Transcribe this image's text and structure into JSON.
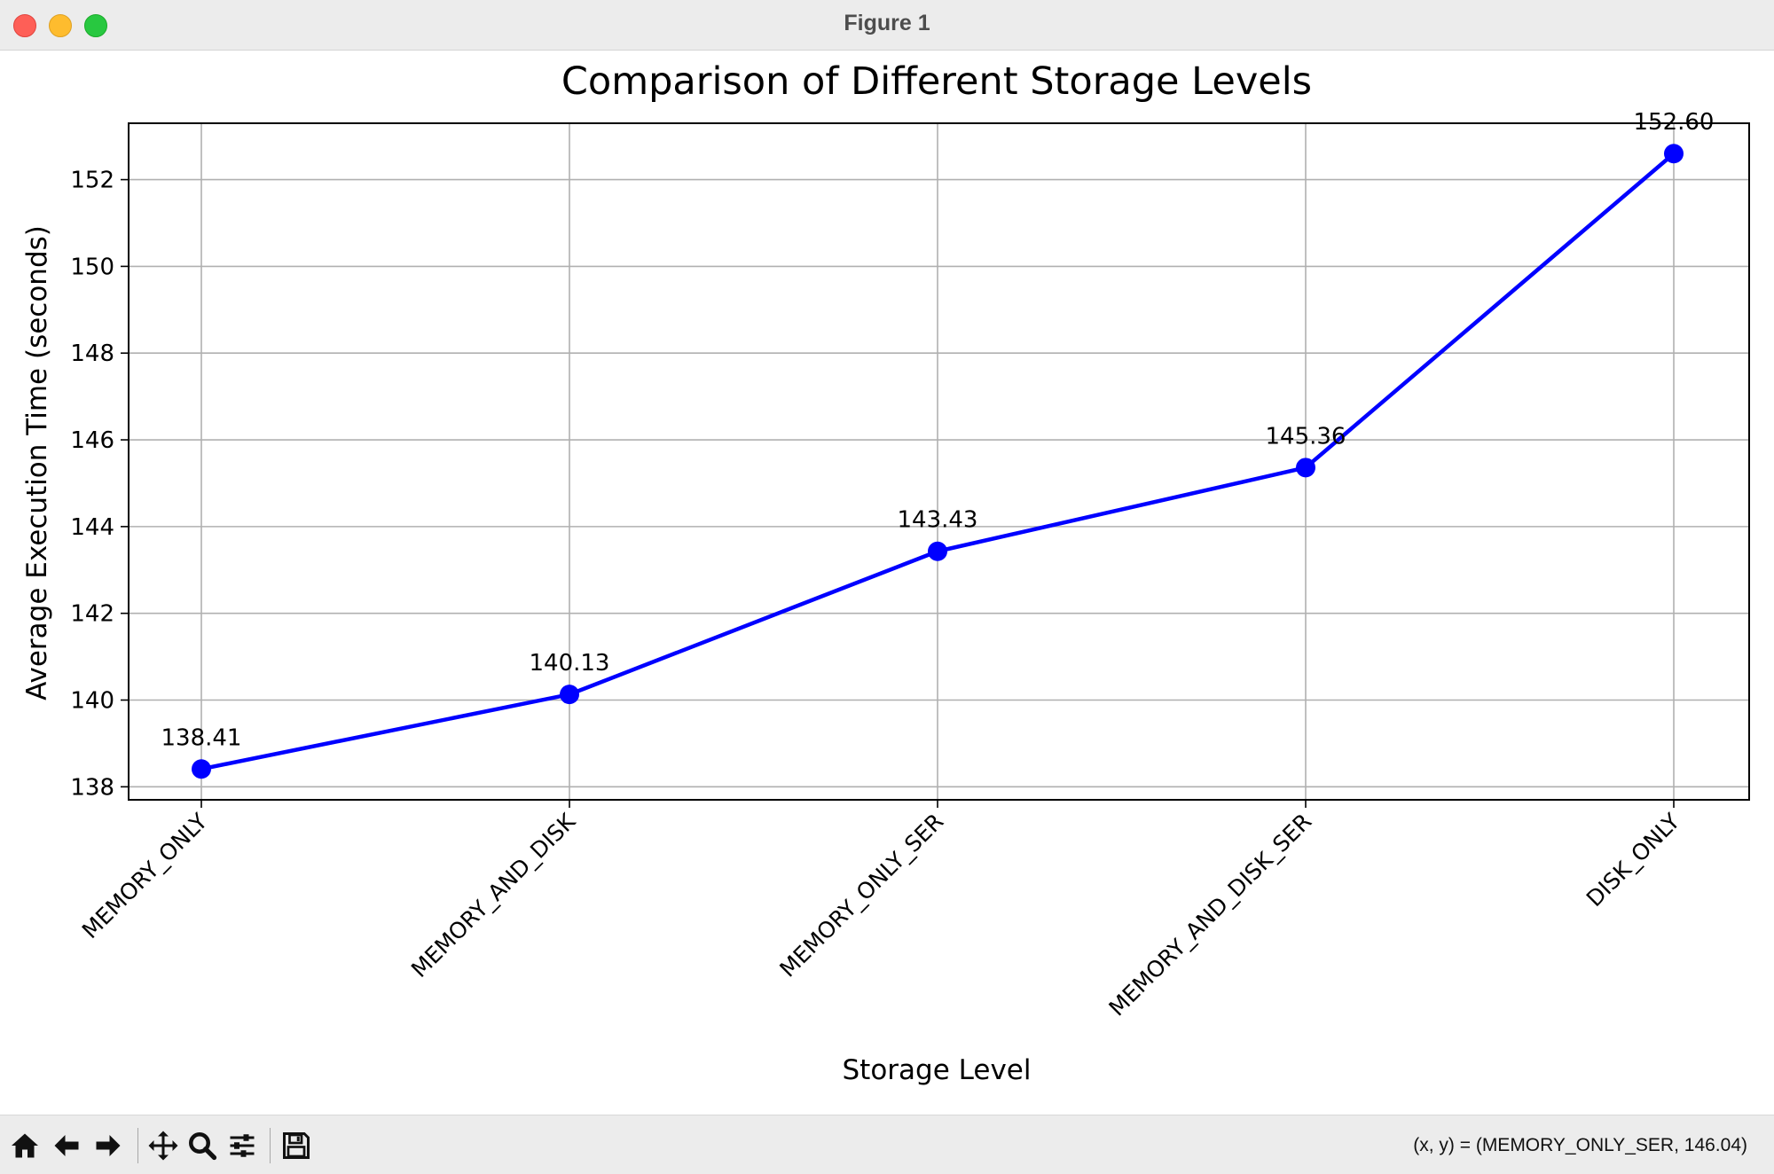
{
  "window": {
    "title": "Figure 1"
  },
  "chart_data": {
    "type": "line",
    "title": "Comparison of Different Storage Levels",
    "xlabel": "Storage Level",
    "ylabel": "Average Execution Time (seconds)",
    "categories": [
      "MEMORY_ONLY",
      "MEMORY_AND_DISK",
      "MEMORY_ONLY_SER",
      "MEMORY_AND_DISK_SER",
      "DISK_ONLY"
    ],
    "values": [
      138.41,
      140.13,
      143.43,
      145.36,
      152.6
    ],
    "data_labels": [
      "138.41",
      "140.13",
      "143.43",
      "145.36",
      "152.60"
    ],
    "ylim": [
      137.7,
      153.3
    ],
    "yticks": [
      138,
      140,
      142,
      144,
      146,
      148,
      150,
      152
    ],
    "grid": true,
    "line_color": "#0000ff",
    "marker": "circle"
  },
  "toolbar": {
    "buttons": [
      {
        "name": "home-button",
        "icon": "home-icon"
      },
      {
        "name": "back-button",
        "icon": "arrow-left-icon"
      },
      {
        "name": "forward-button",
        "icon": "arrow-right-icon"
      },
      {
        "name": "pan-button",
        "icon": "move-icon"
      },
      {
        "name": "zoom-button",
        "icon": "magnifier-icon"
      },
      {
        "name": "configure-subplots-button",
        "icon": "sliders-icon"
      },
      {
        "name": "save-button",
        "icon": "floppy-icon"
      }
    ],
    "coords": "(x, y) = (MEMORY_ONLY_SER, 146.04)"
  }
}
